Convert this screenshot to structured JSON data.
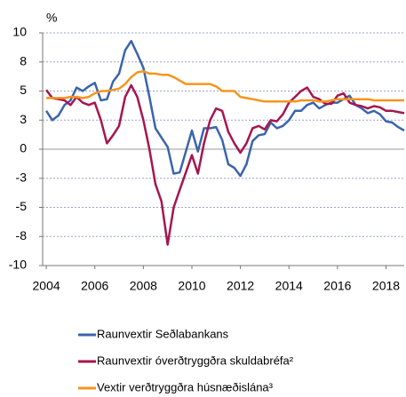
{
  "chart_data": {
    "type": "line",
    "ylabel": "%",
    "x": [
      2004,
      2004.25,
      2004.5,
      2004.75,
      2005,
      2005.25,
      2005.5,
      2005.75,
      2006,
      2006.25,
      2006.5,
      2006.75,
      2007,
      2007.25,
      2007.5,
      2007.75,
      2008,
      2008.25,
      2008.5,
      2008.75,
      2009,
      2009.25,
      2009.5,
      2009.75,
      2010,
      2010.25,
      2010.5,
      2010.75,
      2011,
      2011.25,
      2011.5,
      2011.75,
      2012,
      2012.25,
      2012.5,
      2012.75,
      2013,
      2013.25,
      2013.5,
      2013.75,
      2014,
      2014.25,
      2014.5,
      2014.75,
      2015,
      2015.25,
      2015.5,
      2015.75,
      2016,
      2016.25,
      2016.5,
      2016.75,
      2017,
      2017.25,
      2017.5,
      2017.75,
      2018,
      2018.25,
      2018.5,
      2018.75
    ],
    "series": [
      {
        "name": "Raunvextir Seðlabankans",
        "color": "#3b64ad",
        "values": [
          3.3,
          2.5,
          2.9,
          3.8,
          4.2,
          5.3,
          5.0,
          5.4,
          5.7,
          4.2,
          4.3,
          5.8,
          6.5,
          8.5,
          9.3,
          8.2,
          7.0,
          4.5,
          1.8,
          1.0,
          0.2,
          -2.1,
          -2.0,
          -0.2,
          1.6,
          -0.2,
          1.8,
          1.8,
          1.9,
          0.8,
          -1.3,
          -1.6,
          -2.3,
          -1.3,
          0.7,
          1.2,
          1.3,
          2.3,
          1.8,
          2.0,
          2.5,
          3.3,
          3.3,
          3.8,
          4.0,
          3.5,
          3.8,
          4.0,
          4.0,
          4.3,
          4.6,
          3.8,
          3.5,
          3.1,
          3.3,
          3.0,
          2.4,
          2.3,
          1.9,
          1.6
        ]
      },
      {
        "name": "Raunvextir óverðtryggðra skuldabréfa²",
        "color": "#a5164f",
        "values": [
          5.1,
          4.4,
          4.3,
          4.2,
          3.8,
          4.5,
          4.0,
          3.8,
          4.0,
          2.5,
          0.5,
          1.2,
          2.0,
          4.5,
          5.5,
          4.5,
          2.5,
          0,
          -3,
          -4.5,
          -8.2,
          -5,
          -3.5,
          -2,
          -0.5,
          -2.1,
          0.5,
          2.5,
          3.5,
          3.3,
          1.5,
          0.5,
          -0.3,
          0.5,
          1.8,
          2.0,
          1.7,
          2.5,
          2.4,
          3.0,
          4.0,
          4.5,
          5.0,
          5.3,
          4.5,
          4.3,
          3.9,
          3.9,
          4.6,
          4.8,
          4.0,
          3.8,
          3.7,
          3.5,
          3.7,
          3.6,
          3.3,
          3.3,
          3.2,
          3.1
        ]
      },
      {
        "name": "Vextir verðtryggðra húsnæðislána³",
        "color": "#f7941d",
        "values": [
          4.4,
          4.4,
          4.4,
          4.4,
          4.5,
          4.5,
          4.4,
          4.5,
          4.8,
          5.0,
          5.0,
          5.1,
          5.2,
          5.6,
          6.2,
          6.6,
          6.7,
          6.5,
          6.5,
          6.4,
          6.4,
          6.2,
          5.9,
          5.6,
          5.6,
          5.6,
          5.6,
          5.6,
          5.4,
          5.0,
          5.0,
          5.0,
          4.5,
          4.4,
          4.3,
          4.2,
          4.1,
          4.1,
          4.1,
          4.1,
          4.1,
          4.1,
          4.2,
          4.2,
          4.2,
          4.1,
          4.1,
          4.2,
          4.3,
          4.3,
          4.3,
          4.3,
          4.3,
          4.3,
          4.2,
          4.2,
          4.2,
          4.2,
          4.2,
          4.2
        ]
      }
    ],
    "xlim": [
      2003.85,
      2018.75
    ],
    "xticks": [
      2004,
      2006,
      2008,
      2010,
      2012,
      2014,
      2016,
      2018
    ],
    "ylim": [
      -10,
      10
    ],
    "yticks": [
      10,
      {
        "value": 7.5,
        "label": "8"
      },
      5,
      {
        "value": 2.5,
        "label": "3"
      },
      0,
      {
        "value": -2.5,
        "label": "-3"
      },
      -5,
      {
        "value": -7.5,
        "label": "-8"
      },
      -10
    ],
    "grid": true
  }
}
